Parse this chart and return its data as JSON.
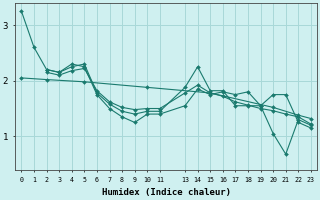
{
  "title": "",
  "xlabel": "Humidex (Indice chaleur)",
  "xlim": [
    -0.5,
    23.5
  ],
  "ylim": [
    0.4,
    3.4
  ],
  "yticks": [
    1,
    2,
    3
  ],
  "xtick_positions": [
    0,
    1,
    2,
    3,
    4,
    5,
    6,
    7,
    8,
    9,
    10,
    11,
    13,
    14,
    15,
    16,
    17,
    18,
    19,
    20,
    21,
    22,
    23
  ],
  "xtick_labels": [
    "0",
    "1",
    "2",
    "3",
    "4",
    "5",
    "6",
    "7",
    "8",
    "9",
    "10",
    "11",
    "13",
    "14",
    "15",
    "16",
    "17",
    "18",
    "19",
    "20",
    "21",
    "22",
    "23"
  ],
  "bg_color": "#cff0f0",
  "grid_color": "#a8d8d8",
  "line_color": "#1a7a6e",
  "lines": [
    {
      "x": [
        0,
        1,
        2,
        3,
        4,
        5,
        6,
        7,
        8,
        9,
        10,
        11,
        13,
        14,
        15,
        16,
        17,
        18,
        19,
        20,
        21,
        22,
        23
      ],
      "y": [
        3.25,
        2.6,
        2.2,
        2.15,
        2.3,
        2.25,
        1.75,
        1.5,
        1.35,
        1.25,
        1.4,
        1.4,
        1.55,
        1.85,
        1.75,
        1.8,
        1.75,
        1.8,
        1.55,
        1.75,
        1.75,
        1.25,
        1.15
      ]
    },
    {
      "x": [
        2,
        3,
        4,
        5,
        6,
        7,
        8,
        9,
        10,
        11,
        13,
        14,
        15,
        16,
        17,
        18,
        19,
        20,
        21,
        22,
        23
      ],
      "y": [
        2.2,
        2.15,
        2.25,
        2.3,
        1.78,
        1.58,
        1.45,
        1.4,
        1.45,
        1.45,
        1.88,
        2.25,
        1.82,
        1.82,
        1.55,
        1.55,
        1.55,
        1.05,
        0.68,
        1.3,
        1.2
      ]
    },
    {
      "x": [
        2,
        3,
        4,
        5,
        6,
        7,
        8,
        9,
        10,
        11,
        13,
        14,
        15,
        16,
        17,
        18,
        19,
        20,
        21,
        22,
        23
      ],
      "y": [
        2.15,
        2.1,
        2.18,
        2.22,
        1.82,
        1.62,
        1.52,
        1.48,
        1.5,
        1.5,
        1.78,
        1.92,
        1.78,
        1.72,
        1.62,
        1.56,
        1.5,
        1.46,
        1.4,
        1.35,
        1.22
      ]
    },
    {
      "x": [
        0,
        2,
        5,
        10,
        15,
        20,
        22,
        23
      ],
      "y": [
        2.05,
        2.02,
        1.98,
        1.88,
        1.78,
        1.52,
        1.38,
        1.32
      ]
    }
  ]
}
